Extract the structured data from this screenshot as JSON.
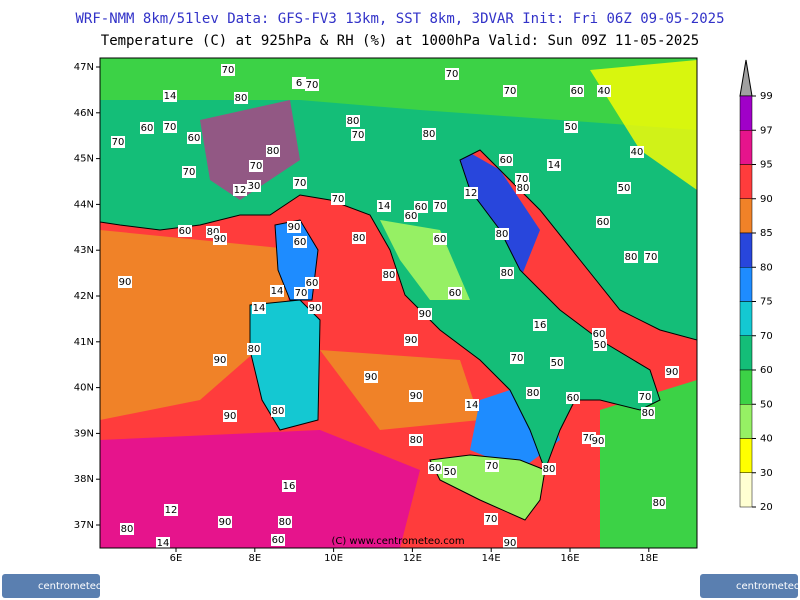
{
  "header": {
    "line1": "WRF-NMM 8km/51lev  Data: GFS-FV3 13km, SST 8km, 3DVAR  Init: Fri 06Z 09-05-2025",
    "line2": "Temperature (C) at 925hPa & RH (%) at 1000hPa  Valid: Sun 09Z 11-05-2025"
  },
  "map": {
    "lat_labels": [
      "47N",
      "46N",
      "45N",
      "44N",
      "43N",
      "42N",
      "41N",
      "40N",
      "39N",
      "38N",
      "37N"
    ],
    "lon_labels": [
      "6E",
      "8E",
      "10E",
      "12E",
      "14E",
      "16E",
      "18E"
    ],
    "credit": "(C) www.centrometeo.com",
    "contour_labels": [
      "70",
      "6",
      "70",
      "70",
      "70",
      "60",
      "40",
      "14",
      "80",
      "80",
      "70",
      "80",
      "60",
      "70",
      "60",
      "70",
      "50",
      "80",
      "60",
      "14",
      "40",
      "70",
      "70",
      "70",
      "12",
      "30",
      "12",
      "70",
      "80",
      "50",
      "70",
      "14",
      "60",
      "70",
      "60",
      "90",
      "60",
      "80",
      "90",
      "60",
      "80",
      "60",
      "80",
      "60",
      "80",
      "70",
      "80",
      "80",
      "90",
      "60",
      "14",
      "70",
      "60",
      "90",
      "14",
      "90",
      "16",
      "60",
      "50",
      "90",
      "80",
      "90",
      "70",
      "50",
      "90",
      "90",
      "90",
      "14",
      "80",
      "60",
      "70",
      "80",
      "90",
      "80",
      "80",
      "70",
      "90",
      "60",
      "50",
      "70",
      "80",
      "16",
      "80",
      "12",
      "90",
      "80",
      "80",
      "14",
      "60",
      "70",
      "90"
    ]
  },
  "colorbar": {
    "levels": [
      99,
      97,
      95,
      90,
      85,
      80,
      75,
      70,
      60,
      50,
      40,
      30,
      20
    ],
    "colors": [
      "#a000c8",
      "#e6148c",
      "#ff3c3c",
      "#f08228",
      "#2846dc",
      "#1e8cff",
      "#14c8d2",
      "#14be78",
      "#3cd246",
      "#96f064",
      "#ffff00",
      "#ffffd2"
    ]
  },
  "logos": {
    "left": "centrometeo",
    "right": "centrometeo"
  }
}
